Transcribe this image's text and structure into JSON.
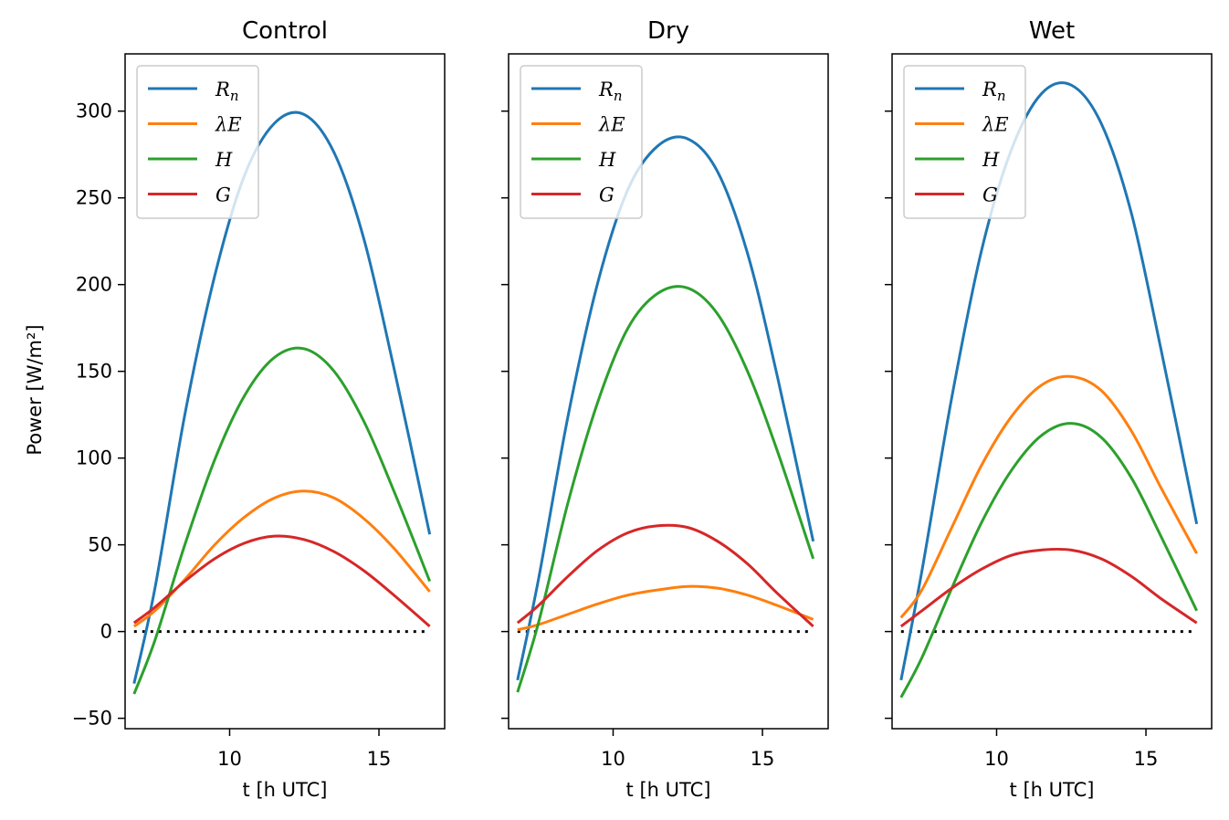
{
  "chart_data": [
    {
      "type": "line",
      "title": "Control",
      "xlabel": "t [h UTC]",
      "ylabel": "Power [W/m²]",
      "xlim": [
        6.5,
        17.2
      ],
      "ylim": [
        -56,
        333
      ],
      "xticks": [
        10,
        15
      ],
      "yticks": [
        -50,
        0,
        50,
        100,
        150,
        200,
        250,
        300
      ],
      "legend_position": "top-left",
      "zero_line": {
        "x": [
          6.8,
          16.7
        ],
        "y": 0,
        "style": "dotted",
        "color": "#000000"
      },
      "series": [
        {
          "name": "R",
          "sub": "n",
          "color": "#1f77b4",
          "x": [
            6.8,
            7.5,
            8.5,
            9.5,
            10.5,
            11.5,
            12.5,
            13.5,
            14.5,
            15.5,
            16.7
          ],
          "y": [
            -30,
            25,
            125,
            205,
            263,
            293,
            298,
            276,
            226,
            152,
            56
          ]
        },
        {
          "name": "λE",
          "color": "#ff7f0e",
          "x": [
            6.8,
            7.5,
            8.5,
            9.5,
            10.5,
            11.5,
            12.5,
            13.5,
            14.5,
            15.5,
            16.7
          ],
          "y": [
            3,
            12,
            30,
            50,
            66,
            77,
            81,
            77,
            65,
            48,
            23
          ]
        },
        {
          "name": "H",
          "color": "#2ca02c",
          "x": [
            6.8,
            7.5,
            8.5,
            9.5,
            10.5,
            11.5,
            12.5,
            13.5,
            14.5,
            15.5,
            16.7
          ],
          "y": [
            -36,
            -5,
            50,
            99,
            136,
            158,
            163,
            150,
            121,
            81,
            29
          ]
        },
        {
          "name": "G",
          "color": "#d62728",
          "x": [
            6.8,
            7.5,
            8.5,
            9.5,
            10.5,
            11.5,
            12.5,
            13.5,
            14.5,
            15.5,
            16.7
          ],
          "y": [
            5,
            14,
            29,
            42,
            51,
            55,
            53,
            46,
            35,
            21,
            3
          ]
        }
      ]
    },
    {
      "type": "line",
      "title": "Dry",
      "xlabel": "t [h UTC]",
      "xlim": [
        6.5,
        17.2
      ],
      "ylim": [
        -56,
        333
      ],
      "xticks": [
        10,
        15
      ],
      "yticks": [
        -50,
        0,
        50,
        100,
        150,
        200,
        250,
        300
      ],
      "legend_position": "top-left",
      "zero_line": {
        "x": [
          6.8,
          16.7
        ],
        "y": 0,
        "style": "dotted",
        "color": "#000000"
      },
      "series": [
        {
          "name": "R",
          "sub": "n",
          "color": "#1f77b4",
          "x": [
            6.8,
            7.5,
            8.5,
            9.5,
            10.5,
            11.5,
            12.5,
            13.5,
            14.5,
            15.5,
            16.7
          ],
          "y": [
            -28,
            30,
            125,
            202,
            255,
            280,
            284,
            265,
            218,
            147,
            52
          ]
        },
        {
          "name": "λE",
          "color": "#ff7f0e",
          "x": [
            6.8,
            7.5,
            8.5,
            9.5,
            10.5,
            11.5,
            12.5,
            13.5,
            14.5,
            15.5,
            16.7
          ],
          "y": [
            1,
            4,
            10,
            16,
            21,
            24,
            26,
            25,
            21,
            15,
            7
          ]
        },
        {
          "name": "H",
          "color": "#2ca02c",
          "x": [
            6.8,
            7.5,
            8.5,
            9.5,
            10.5,
            11.5,
            12.5,
            13.5,
            14.5,
            15.5,
            16.7
          ],
          "y": [
            -35,
            5,
            75,
            133,
            175,
            195,
            198,
            183,
            150,
            104,
            42
          ]
        },
        {
          "name": "G",
          "color": "#d62728",
          "x": [
            6.8,
            7.5,
            8.5,
            9.5,
            10.5,
            11.5,
            12.5,
            13.5,
            14.5,
            15.5,
            16.7
          ],
          "y": [
            5,
            15,
            32,
            47,
            57,
            61,
            60,
            52,
            39,
            22,
            3
          ]
        }
      ]
    },
    {
      "type": "line",
      "title": "Wet",
      "xlabel": "t [h UTC]",
      "xlim": [
        6.5,
        17.2
      ],
      "ylim": [
        -56,
        333
      ],
      "xticks": [
        10,
        15
      ],
      "yticks": [
        -50,
        0,
        50,
        100,
        150,
        200,
        250,
        300
      ],
      "legend_position": "top-left",
      "zero_line": {
        "x": [
          6.8,
          16.7
        ],
        "y": 0,
        "style": "dotted",
        "color": "#000000"
      },
      "series": [
        {
          "name": "R",
          "sub": "n",
          "color": "#1f77b4",
          "x": [
            6.8,
            7.5,
            8.5,
            9.5,
            10.5,
            11.5,
            12.5,
            13.5,
            14.5,
            15.5,
            16.7
          ],
          "y": [
            -28,
            35,
            135,
            220,
            278,
            310,
            315,
            293,
            242,
            163,
            62
          ]
        },
        {
          "name": "λE",
          "color": "#ff7f0e",
          "x": [
            6.8,
            7.5,
            8.5,
            9.5,
            10.5,
            11.5,
            12.5,
            13.5,
            14.5,
            15.5,
            16.7
          ],
          "y": [
            8,
            24,
            60,
            96,
            124,
            142,
            147,
            139,
            116,
            83,
            45
          ]
        },
        {
          "name": "H",
          "color": "#2ca02c",
          "x": [
            6.8,
            7.5,
            8.5,
            9.5,
            10.5,
            11.5,
            12.5,
            13.5,
            14.5,
            15.5,
            16.7
          ],
          "y": [
            -38,
            -15,
            25,
            63,
            93,
            113,
            120,
            112,
            89,
            55,
            12
          ]
        },
        {
          "name": "G",
          "color": "#d62728",
          "x": [
            6.8,
            7.5,
            8.5,
            9.5,
            10.5,
            11.5,
            12.5,
            13.5,
            14.5,
            15.5,
            16.7
          ],
          "y": [
            3,
            12,
            25,
            36,
            44,
            47,
            47,
            42,
            32,
            19,
            5
          ]
        }
      ]
    }
  ]
}
